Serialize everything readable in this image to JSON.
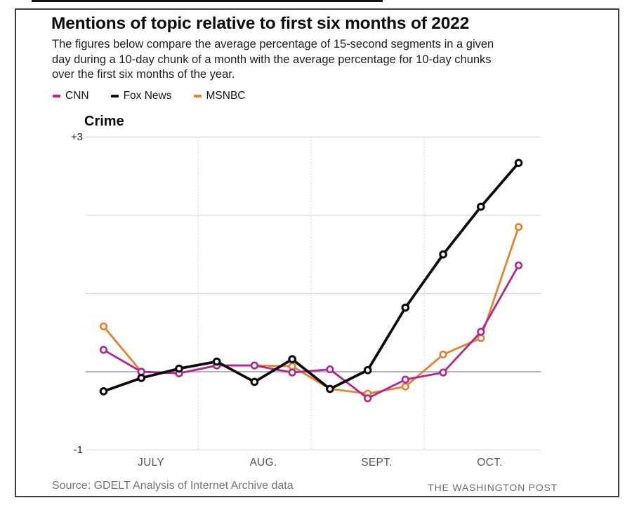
{
  "header": {
    "title": "Mentions of topic relative to first six months of 2022",
    "subtitle": "The figures below compare the average percentage of 15-second segments in a given day during a 10-day chunk of a month with the average percentage for 10-day chunks over the first six months of the year."
  },
  "legend": [
    {
      "label": "CNN",
      "color": "#b5258e"
    },
    {
      "label": "Fox News",
      "color": "#0d0d0d"
    },
    {
      "label": "MSNBC",
      "color": "#e6822e"
    }
  ],
  "chart_data": {
    "type": "line",
    "title": "Crime",
    "x_axis": {
      "months": [
        "JULY",
        "AUG.",
        "SEPT.",
        "OCT."
      ],
      "points_per_month": 3,
      "unit": "10-day chunks"
    },
    "y_axis": {
      "top_label": "+3",
      "bottom_label": "-1",
      "min": -1,
      "max": 3,
      "gridline_values": [
        3,
        2,
        1,
        0,
        -1
      ],
      "zero_line": true
    },
    "series": [
      {
        "name": "CNN",
        "color": "#b5258e",
        "values": [
          0.28,
          0.0,
          -0.02,
          0.08,
          0.08,
          -0.01,
          0.03,
          -0.34,
          -0.1,
          -0.01,
          0.51,
          1.36
        ]
      },
      {
        "name": "Fox News",
        "color": "#0d0d0d",
        "values": [
          -0.25,
          -0.08,
          0.04,
          0.13,
          -0.13,
          0.16,
          -0.22,
          0.02,
          0.82,
          1.5,
          2.11,
          2.67
        ]
      },
      {
        "name": "MSNBC",
        "color": "#e6822e",
        "values": [
          0.58,
          0.0,
          -0.02,
          0.08,
          0.08,
          0.07,
          -0.22,
          -0.28,
          -0.19,
          0.22,
          0.43,
          1.85
        ]
      }
    ],
    "legend_position": "top-left",
    "grid": true
  },
  "footer": {
    "source": "Source: GDELT Analysis of Internet Archive data",
    "credit": "THE WASHINGTON POST"
  },
  "colors": {
    "cnn": "#b5258e",
    "fox_news": "#0d0d0d",
    "msnbc": "#e6822e",
    "gridline": "#dcdcdc",
    "zero_line": "#9b9b9b",
    "month_divider": "#c9c9c9",
    "frame_border": "#3e3e3e"
  }
}
